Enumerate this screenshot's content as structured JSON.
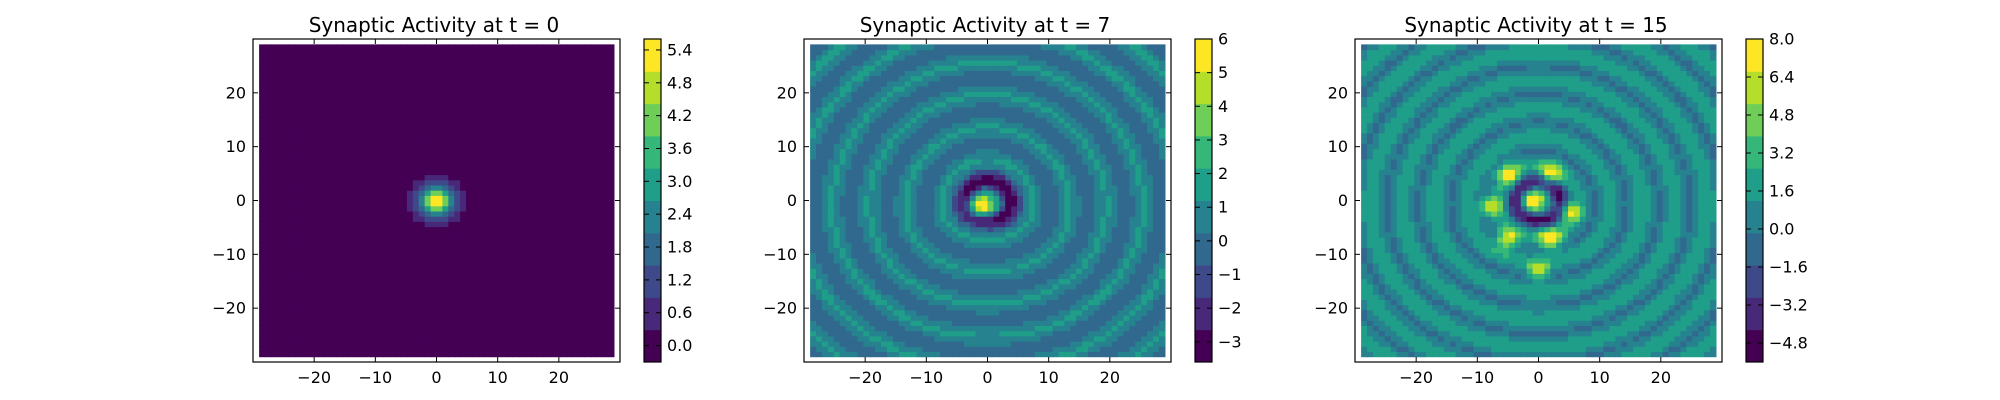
{
  "chart_data": [
    {
      "type": "heatmap",
      "title": "Synaptic Activity at t = 0",
      "xlabel": "",
      "ylabel": "",
      "xlim": [
        -30,
        30
      ],
      "ylim": [
        -30,
        30
      ],
      "x_ticks": [
        -20,
        -10,
        0,
        10,
        20
      ],
      "y_ticks": [
        20,
        10,
        0,
        -10,
        -20
      ],
      "x_tick_labels": [
        "−20",
        "−10",
        "0",
        "10",
        "20"
      ],
      "y_tick_labels": [
        "20",
        "10",
        "0",
        "−10",
        "−20"
      ],
      "colorbar": {
        "vmin": -0.3,
        "vmax": 5.6,
        "ticks": [
          0.0,
          0.6,
          1.2,
          1.8,
          2.4,
          3.0,
          3.6,
          4.2,
          4.8,
          5.4
        ],
        "tick_labels": [
          "0.0",
          "0.6",
          "1.2",
          "1.8",
          "2.4",
          "3.0",
          "3.6",
          "4.2",
          "4.8",
          "5.4"
        ]
      },
      "field": {
        "background": 0.0,
        "blobs": [
          {
            "x": 0,
            "y": 0,
            "amp": 5.4,
            "sigma": 2.0
          }
        ],
        "wave_amp": 0.0,
        "wave_k": 0.0,
        "ring_amp": 0.0
      }
    },
    {
      "type": "heatmap",
      "title": "Synaptic Activity at t = 7",
      "xlabel": "",
      "ylabel": "",
      "xlim": [
        -30,
        30
      ],
      "ylim": [
        -30,
        30
      ],
      "x_ticks": [
        -20,
        -10,
        0,
        10,
        20
      ],
      "y_ticks": [
        20,
        10,
        0,
        -10,
        -20
      ],
      "x_tick_labels": [
        "−20",
        "−10",
        "0",
        "10",
        "20"
      ],
      "y_tick_labels": [
        "20",
        "10",
        "0",
        "−10",
        "−20"
      ],
      "colorbar": {
        "vmin": -3.6,
        "vmax": 6.0,
        "ticks": [
          -3,
          -2,
          -1,
          0,
          1,
          2,
          3,
          4,
          5,
          6
        ],
        "tick_labels": [
          "−3",
          "−2",
          "−1",
          "0",
          "1",
          "2",
          "3",
          "4",
          "5",
          "6"
        ]
      },
      "field": {
        "background": 0.4,
        "blobs": [
          {
            "x": -1,
            "y": -1,
            "amp": 5.6,
            "sigma": 1.5
          }
        ],
        "wave_amp": 0.9,
        "wave_k": 1.05,
        "ring_amp": -3.2
      }
    },
    {
      "type": "heatmap",
      "title": "Synaptic Activity at t = 15",
      "xlabel": "",
      "ylabel": "",
      "xlim": [
        -30,
        30
      ],
      "ylim": [
        -30,
        30
      ],
      "x_ticks": [
        -20,
        -10,
        0,
        10,
        20
      ],
      "y_ticks": [
        20,
        10,
        0,
        -10,
        -20
      ],
      "x_tick_labels": [
        "−20",
        "−10",
        "0",
        "10",
        "20"
      ],
      "y_tick_labels": [
        "20",
        "10",
        "0",
        "−10",
        "−20"
      ],
      "colorbar": {
        "vmin": -5.6,
        "vmax": 8.0,
        "ticks": [
          -4.8,
          -3.2,
          -1.6,
          0.0,
          1.6,
          3.2,
          4.8,
          6.4,
          8.0
        ],
        "tick_labels": [
          "−4.8",
          "−3.2",
          "−1.6",
          "0.0",
          "1.6",
          "3.2",
          "4.8",
          "6.4",
          "8.0"
        ]
      },
      "field": {
        "background": 1.0,
        "blobs": [
          {
            "x": -5,
            "y": 5,
            "amp": 7.0,
            "sigma": 1.3
          },
          {
            "x": 2,
            "y": 5,
            "amp": 7.5,
            "sigma": 1.3
          },
          {
            "x": -8,
            "y": -1,
            "amp": 6.0,
            "sigma": 1.2
          },
          {
            "x": -1,
            "y": 0,
            "amp": 7.5,
            "sigma": 1.3
          },
          {
            "x": 5,
            "y": -2,
            "amp": 6.5,
            "sigma": 1.2
          },
          {
            "x": -5,
            "y": -7,
            "amp": 7.0,
            "sigma": 1.3
          },
          {
            "x": 2,
            "y": -7,
            "amp": 7.5,
            "sigma": 1.3
          },
          {
            "x": 0,
            "y": -13,
            "amp": 5.5,
            "sigma": 1.2
          }
        ],
        "wave_amp": 1.3,
        "wave_k": 1.2,
        "ring_amp": -4.5
      }
    }
  ],
  "colormap": [
    "#440154",
    "#482878",
    "#3e4989",
    "#31688e",
    "#26828e",
    "#1f9e89",
    "#35b779",
    "#6ece58",
    "#b5de2b",
    "#fde725"
  ]
}
